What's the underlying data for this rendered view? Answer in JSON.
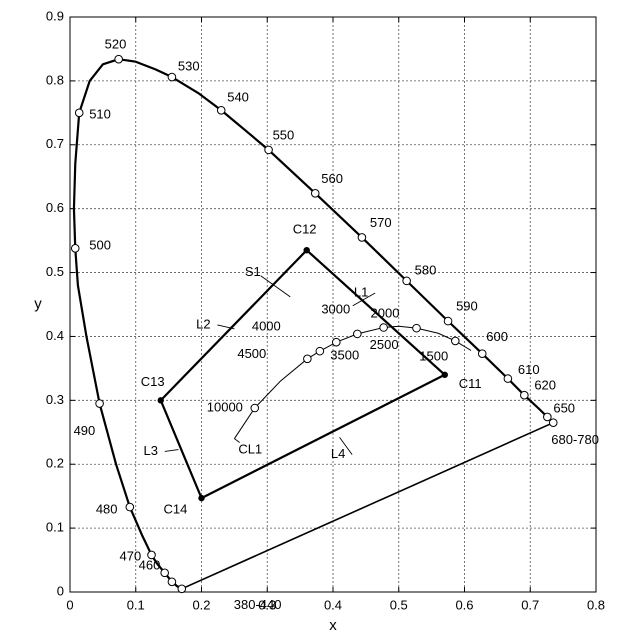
{
  "chart_data": {
    "type": "scatter",
    "title": "",
    "xlabel": "x",
    "ylabel": "y",
    "xlim": [
      0,
      0.8
    ],
    "ylim": [
      0,
      0.9
    ],
    "grid": true,
    "x_ticks": [
      0,
      0.1,
      0.2,
      0.3,
      0.4,
      0.5,
      0.6,
      0.7,
      0.8
    ],
    "x_tick_labels": [
      "0",
      "0.1",
      "0.2",
      "0.3",
      "0.4",
      "0.5",
      "0.6",
      "0.7",
      "0.8"
    ],
    "y_ticks": [
      0,
      0.1,
      0.2,
      0.3,
      0.4,
      0.5,
      0.6,
      0.7,
      0.8,
      0.9
    ],
    "y_tick_labels": [
      "0",
      "0.1",
      "0.2",
      "0.3",
      "0.4",
      "0.5",
      "0.6",
      "0.7",
      "0.8",
      "0.9"
    ],
    "spectral_locus": {
      "points": [
        {
          "label": "380-440",
          "x": 0.17,
          "y": 0.005
        },
        {
          "label": "460",
          "x": 0.144,
          "y": 0.03
        },
        {
          "label": "",
          "x": 0.155,
          "y": 0.016
        },
        {
          "label": "470",
          "x": 0.124,
          "y": 0.058
        },
        {
          "label": "480",
          "x": 0.091,
          "y": 0.133
        },
        {
          "label": "490",
          "x": 0.045,
          "y": 0.295
        },
        {
          "label": "500",
          "x": 0.008,
          "y": 0.538
        },
        {
          "label": "510",
          "x": 0.014,
          "y": 0.75
        },
        {
          "label": "520",
          "x": 0.074,
          "y": 0.834
        },
        {
          "label": "530",
          "x": 0.155,
          "y": 0.806
        },
        {
          "label": "540",
          "x": 0.23,
          "y": 0.754
        },
        {
          "label": "550",
          "x": 0.302,
          "y": 0.692
        },
        {
          "label": "560",
          "x": 0.373,
          "y": 0.624
        },
        {
          "label": "570",
          "x": 0.444,
          "y": 0.555
        },
        {
          "label": "580",
          "x": 0.512,
          "y": 0.487
        },
        {
          "label": "590",
          "x": 0.575,
          "y": 0.424
        },
        {
          "label": "600",
          "x": 0.627,
          "y": 0.373
        },
        {
          "label": "610",
          "x": 0.666,
          "y": 0.334
        },
        {
          "label": "620",
          "x": 0.691,
          "y": 0.308
        },
        {
          "label": "650",
          "x": 0.726,
          "y": 0.274
        },
        {
          "label": "680-780",
          "x": 0.735,
          "y": 0.265
        }
      ]
    },
    "planckian_locus": {
      "name": "CL1",
      "points": [
        {
          "label": "10000",
          "x": 0.281,
          "y": 0.288
        },
        {
          "label": "4500",
          "x": 0.361,
          "y": 0.365
        },
        {
          "label": "4000",
          "x": 0.38,
          "y": 0.377
        },
        {
          "label": "3500",
          "x": 0.405,
          "y": 0.391
        },
        {
          "label": "3000",
          "x": 0.437,
          "y": 0.404
        },
        {
          "label": "2500",
          "x": 0.477,
          "y": 0.414
        },
        {
          "label": "2000",
          "x": 0.527,
          "y": 0.413
        },
        {
          "label": "1500",
          "x": 0.586,
          "y": 0.393
        }
      ]
    },
    "quadrilateral": {
      "region_label": "S1",
      "corners": [
        {
          "label": "C11",
          "x": 0.57,
          "y": 0.34
        },
        {
          "label": "C12",
          "x": 0.36,
          "y": 0.535
        },
        {
          "label": "C13",
          "x": 0.138,
          "y": 0.3
        },
        {
          "label": "C14",
          "x": 0.2,
          "y": 0.147
        }
      ],
      "edges": [
        {
          "label": "L1",
          "from": "C11",
          "to": "C12"
        },
        {
          "label": "L2",
          "from": "C12",
          "to": "C13"
        },
        {
          "label": "L3",
          "from": "C13",
          "to": "C14"
        },
        {
          "label": "L4",
          "from": "C14",
          "to": "C11"
        }
      ]
    }
  }
}
